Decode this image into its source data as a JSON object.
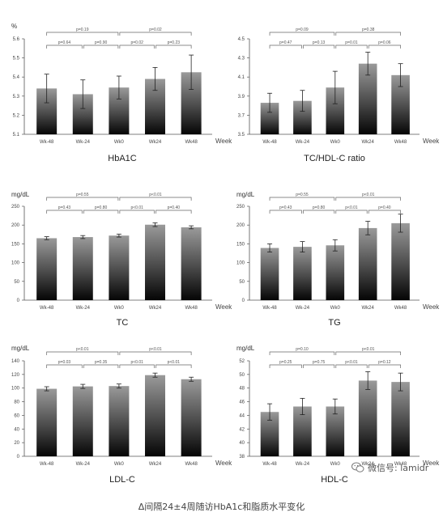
{
  "caption": "Δ间隔24±4周随访HbA1c和脂质水平变化",
  "watermark": {
    "text": "微信号: lamidr",
    "icon": "wechat-icon"
  },
  "week_label": "Week",
  "chart_data": [
    {
      "type": "bar",
      "title": "HbA1C",
      "unit": "%",
      "categories": [
        "Wk-48",
        "Wk-24",
        "Wk0",
        "Wk24",
        "Wk48"
      ],
      "values": [
        5.34,
        5.31,
        5.345,
        5.39,
        5.425
      ],
      "errors": [
        0.075,
        0.075,
        0.06,
        0.06,
        0.09
      ],
      "ylim": [
        5.1,
        5.6
      ],
      "yticks": [
        "5.1",
        "5.2",
        "5.3",
        "5.4",
        "5.5",
        "5.6"
      ],
      "p_top": [
        "p=0.19",
        "p=0.02"
      ],
      "p_bottom": [
        "p=0.64",
        "p=0.90",
        "p=0.02",
        "p=0.23"
      ]
    },
    {
      "type": "bar",
      "title": "TC/HDL-C ratio",
      "unit": "",
      "categories": [
        "Wk-48",
        "Wk-24",
        "Wk0",
        "Wk24",
        "Wk48"
      ],
      "values": [
        3.83,
        3.85,
        3.99,
        4.24,
        4.12
      ],
      "errors": [
        0.1,
        0.11,
        0.17,
        0.12,
        0.12
      ],
      "ylim": [
        3.5,
        4.5
      ],
      "yticks": [
        "3.5",
        "3.7",
        "3.9",
        "4.1",
        "4.3",
        "4.5"
      ],
      "p_top": [
        "p=0.09",
        "p=0.38"
      ],
      "p_bottom": [
        "p=0.47",
        "p=0.13",
        "p=0.01",
        "p=0.06"
      ]
    },
    {
      "type": "bar",
      "title": "TC",
      "unit": "mg/dL",
      "categories": [
        "Wk-48",
        "Wk-24",
        "Wk0",
        "Wk24",
        "Wk48"
      ],
      "values": [
        165,
        168,
        172,
        201,
        194
      ],
      "errors": [
        4,
        4,
        4,
        5,
        4
      ],
      "ylim": [
        0,
        250
      ],
      "yticks": [
        "0",
        "50",
        "100",
        "150",
        "200",
        "250"
      ],
      "p_top": [
        "p=0.55",
        "p<0.01"
      ],
      "p_bottom": [
        "p=0.43",
        "p=0.80",
        "p<0.01",
        "p=0.40"
      ]
    },
    {
      "type": "bar",
      "title": "TG",
      "unit": "mg/dL",
      "categories": [
        "Wk-48",
        "Wk-24",
        "Wk0",
        "Wk24",
        "Wk48"
      ],
      "values": [
        139,
        142,
        146,
        192,
        205
      ],
      "errors": [
        11,
        14,
        15,
        18,
        24
      ],
      "ylim": [
        0,
        250
      ],
      "yticks": [
        "0",
        "50",
        "100",
        "150",
        "200",
        "250"
      ],
      "p_top": [
        "p=0.55",
        "p<0.01"
      ],
      "p_bottom": [
        "p=0.43",
        "p=0.80",
        "p<0.01",
        "p=0.40"
      ]
    },
    {
      "type": "bar",
      "title": "LDL-C",
      "unit": "mg/dL",
      "categories": [
        "Wk-48",
        "Wk-24",
        "Wk0",
        "Wk24",
        "Wk48"
      ],
      "values": [
        99,
        102.5,
        103,
        119,
        113
      ],
      "errors": [
        3,
        3,
        3,
        3,
        3
      ],
      "ylim": [
        0,
        140
      ],
      "yticks": [
        "0",
        "20",
        "40",
        "60",
        "80",
        "100",
        "120",
        "140"
      ],
      "p_top": [
        "p<0.01",
        "p<0.01"
      ],
      "p_bottom": [
        "p=0.03",
        "p=0.35",
        "p<0.01",
        "p<0.01"
      ]
    },
    {
      "type": "bar",
      "title": "HDL-C",
      "unit": "mg/dL",
      "categories": [
        "Wk-48",
        "Wk-24",
        "Wk0",
        "Wk24",
        "Wk48"
      ],
      "values": [
        44.5,
        45.3,
        45.3,
        49.1,
        48.9
      ],
      "errors": [
        1.2,
        1.2,
        1.1,
        1.3,
        1.3
      ],
      "ylim": [
        38,
        52
      ],
      "yticks": [
        "38",
        "40",
        "42",
        "44",
        "46",
        "48",
        "50",
        "52"
      ],
      "p_top": [
        "p=0.10",
        "p<0.01"
      ],
      "p_bottom": [
        "p=0.25",
        "p=0.75",
        "p<0.01",
        "p=0.12"
      ]
    }
  ]
}
